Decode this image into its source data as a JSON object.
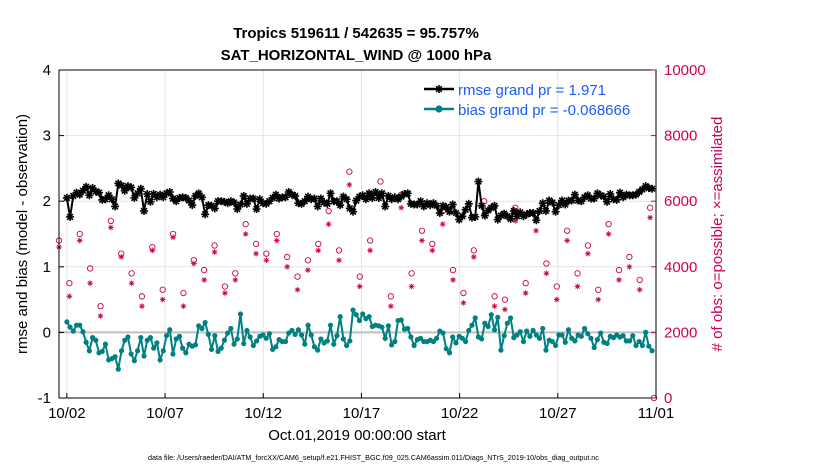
{
  "chart_data": {
    "type": "line",
    "title": "Tropics 519611 / 542635 = 95.757%",
    "subtitle": "SAT_HORIZONTAL_WIND @ 1000 hPa",
    "xlabel": "Oct.01,2019 00:00:00 start",
    "ylabel": "rmse and bias (model - observation)",
    "ylabel_right": "# of obs: o=possible; ×=assimilated",
    "x_tick_labels": [
      "10/02",
      "10/07",
      "10/12",
      "10/17",
      "10/22",
      "10/27",
      "11/01"
    ],
    "x_tick_days": [
      1,
      6,
      11,
      16,
      21,
      26,
      31
    ],
    "xlim": [
      0.6,
      31
    ],
    "ylim": [
      -1,
      4
    ],
    "y_ticks": [
      -1,
      0,
      1,
      2,
      3,
      4
    ],
    "y2lim": [
      0,
      10000
    ],
    "y2_ticks": [
      0,
      2000,
      4000,
      6000,
      8000,
      10000
    ],
    "grid": true,
    "legend_position": "top-right",
    "colors": {
      "rmse": "#000000",
      "bias": "#008080",
      "obs": "#cc0055",
      "zero_line": "#bfbfbf",
      "legend_text": "#1a5cff",
      "right_axis": "#cc0055"
    },
    "series": [
      {
        "name": "rmse grand pr = 1.971",
        "axis": "left",
        "marker": "asterisk",
        "values": [
          2.05,
          1.76,
          2.08,
          2.13,
          2.1,
          2.16,
          2.22,
          2.09,
          2.2,
          2.15,
          2.13,
          2.02,
          2.03,
          2.09,
          2.03,
          1.92,
          2.27,
          2.24,
          2.16,
          2.23,
          2.21,
          2.05,
          2.12,
          2.19,
          1.85,
          2.11,
          1.99,
          2.11,
          2.06,
          2.1,
          2.06,
          2.12,
          2.14,
          2.04,
          2.0,
          2.05,
          2.06,
          2.05,
          2.01,
          1.94,
          2.08,
          2.12,
          2.06,
          1.8,
          1.94,
          1.93,
          1.89,
          2.0,
          2.0,
          1.99,
          1.97,
          2.0,
          1.98,
          1.88,
          1.95,
          2.08,
          1.96,
          2.04,
          2.04,
          1.88,
          2.03,
          1.97,
          1.96,
          2.0,
          2.05,
          2.1,
          2.04,
          2.06,
          2.06,
          2.14,
          2.1,
          2.08,
          1.97,
          1.96,
          2.0,
          2.07,
          2.03,
          2.04,
          1.92,
          2.04,
          1.98,
          1.96,
          2.12,
          2.0,
          2.0,
          1.94,
          2.07,
          2.03,
          1.89,
          1.84,
          2.01,
          2.07,
          2.09,
          2.03,
          2.12,
          2.05,
          2.14,
          2.05,
          2.12,
          1.92,
          2.08,
          2.03,
          2.06,
          2.03,
          2.07,
          2.11,
          2.12,
          1.96,
          1.95,
          1.95,
          2.0,
          1.92,
          1.97,
          1.94,
          1.97,
          1.93,
          1.82,
          1.93,
          1.91,
          1.84,
          1.95,
          1.82,
          1.72,
          1.77,
          1.87,
          1.96,
          1.75,
          1.76,
          2.3,
          1.93,
          1.78,
          1.86,
          1.9,
          1.93,
          1.72,
          1.78,
          1.81,
          1.77,
          1.73,
          1.85,
          1.77,
          1.83,
          1.77,
          1.8,
          1.82,
          1.82,
          1.71,
          1.85,
          1.97,
          1.85,
          2.01,
          1.98,
          1.84,
          1.94,
          2.01,
          1.95,
          2.01,
          2.01,
          2.1,
          2.01,
          2.0,
          2.06,
          2.09,
          2.04,
          2.04,
          2.12,
          2.09,
          2.07,
          1.99,
          2.11,
          2.03,
          2.02,
          2.13,
          2.06,
          2.1,
          2.09,
          2.09,
          2.1,
          2.14,
          2.18,
          2.23,
          2.2,
          2.19
        ]
      },
      {
        "name": "bias grand pr = -0.068666",
        "axis": "left",
        "marker": "dot",
        "values": [
          0.16,
          0.08,
          0.02,
          0.11,
          0.11,
          0.01,
          -0.15,
          -0.28,
          -0.08,
          -0.12,
          -0.31,
          -0.29,
          -0.18,
          -0.42,
          -0.4,
          -0.37,
          -0.56,
          -0.28,
          -0.12,
          -0.07,
          -0.33,
          -0.43,
          -0.28,
          -0.08,
          -0.36,
          -0.12,
          -0.08,
          -0.24,
          -0.16,
          -0.42,
          -0.28,
          -0.05,
          0.04,
          -0.33,
          -0.1,
          -0.06,
          -0.24,
          -0.31,
          -0.18,
          -0.21,
          -0.19,
          0.1,
          0.06,
          0.15,
          -0.03,
          -0.26,
          -0.05,
          -0.29,
          -0.24,
          -0.12,
          -0.01,
          0.06,
          -0.18,
          -0.1,
          0.28,
          -0.17,
          0.03,
          -0.07,
          -0.2,
          -0.13,
          -0.06,
          -0.04,
          -0.09,
          -0.02,
          -0.26,
          -0.22,
          -0.11,
          -0.14,
          -0.14,
          -0.01,
          0.03,
          -0.03,
          0.04,
          -0.04,
          -0.18,
          0.11,
          -0.04,
          -0.22,
          -0.27,
          -0.1,
          -0.16,
          -0.13,
          0.11,
          -0.18,
          -0.05,
          0.24,
          -0.1,
          -0.2,
          -0.13,
          0.34,
          0.27,
          0.18,
          0.28,
          0.21,
          0.24,
          0.09,
          0.11,
          0.1,
          0.08,
          -0.09,
          0.1,
          -0.19,
          -0.14,
          0.18,
          0.19,
          0.05,
          0.06,
          -0.07,
          -0.2,
          -0.11,
          -0.09,
          -0.14,
          -0.14,
          -0.12,
          -0.14,
          -0.09,
          0.02,
          -0.01,
          -0.25,
          -0.31,
          -0.07,
          -0.16,
          -0.06,
          -0.09,
          -0.14,
          0.03,
          0.11,
          0.22,
          -0.07,
          -0.1,
          0.14,
          0.09,
          0.27,
          0.04,
          0.23,
          -0.27,
          -0.05,
          0.14,
          0.22,
          -0.08,
          -0.04,
          0.01,
          -0.14,
          0.02,
          -0.06,
          0.03,
          -0.04,
          -0.09,
          0.06,
          -0.27,
          -0.12,
          -0.14,
          -0.2,
          -0.04,
          -0.04,
          -0.15,
          0.04,
          -0.09,
          -0.13,
          -0.04,
          -0.06,
          0.06,
          -0.02,
          -0.09,
          -0.23,
          -0.11,
          -0.01,
          -0.15,
          -0.17,
          -0.06,
          -0.08,
          -0.04,
          -0.07,
          -0.05,
          -0.13,
          -0.13,
          -0.05,
          -0.2,
          -0.14,
          -0.2,
          0.0,
          -0.21,
          -0.28
        ]
      },
      {
        "name": "# of obs possible",
        "axis": "right",
        "marker": "circle",
        "values": [
          4800,
          3500,
          5000,
          3950,
          2800,
          5400,
          4400,
          3800,
          3100,
          4600,
          3300,
          5000,
          3200,
          4200,
          3900,
          4650,
          3400,
          3800,
          5300,
          4700,
          4400,
          5000,
          4300,
          3700,
          4200,
          4700,
          5700,
          4500,
          6900,
          3700,
          4800,
          6600,
          3100,
          6200,
          3800,
          5100,
          4700,
          5700,
          3900,
          3200,
          4500,
          6000,
          3100,
          3000,
          5800,
          3500,
          5600,
          4100,
          3400,
          5100,
          3800,
          4650,
          3300,
          5300,
          3900,
          4300,
          3600,
          5800
        ]
      },
      {
        "name": "# of obs assimilated",
        "axis": "right",
        "marker": "x",
        "values": [
          4600,
          3100,
          4800,
          3500,
          2500,
          5200,
          4300,
          3500,
          2800,
          4500,
          3000,
          4900,
          2800,
          4100,
          3600,
          4450,
          3200,
          3600,
          5000,
          4400,
          4200,
          4800,
          4000,
          3300,
          3900,
          4500,
          5300,
          4200,
          6500,
          3400,
          4500,
          6200,
          2800,
          5800,
          3400,
          4800,
          4500,
          5300,
          3600,
          2900,
          4300,
          5600,
          2800,
          2700,
          5400,
          3200,
          5100,
          3800,
          3000,
          4800,
          3400,
          4400,
          3000,
          5000,
          3600,
          4000,
          3300,
          5500
        ]
      }
    ],
    "footer": "data file: /Users/raeder/DAI/ATM_forcXX/CAM6_setup/f.e21.FHIST_BGC.f09_025.CAM6assim.011/Diags_NTrS_2019-10/obs_diag_output.nc"
  }
}
